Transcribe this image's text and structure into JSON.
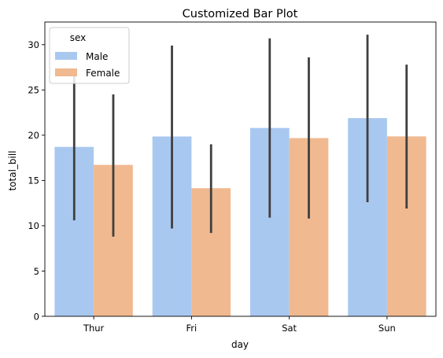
{
  "chart_data": {
    "type": "bar",
    "title": "Customized Bar Plot",
    "xlabel": "day",
    "ylabel": "total_bill",
    "categories": [
      "Thur",
      "Fri",
      "Sat",
      "Sun"
    ],
    "ylim": [
      0,
      32.5
    ],
    "yticks": [
      0,
      5,
      10,
      15,
      20,
      25,
      30
    ],
    "grid": false,
    "legend": {
      "title": "sex",
      "placement": "upper-left"
    },
    "series": [
      {
        "name": "Male",
        "color": "#a9c8f0",
        "values": [
          18.71,
          19.86,
          20.8,
          21.89
        ],
        "error_low": [
          10.6,
          9.7,
          10.9,
          12.6
        ],
        "error_high": [
          27.0,
          29.9,
          30.7,
          31.1
        ]
      },
      {
        "name": "Female",
        "color": "#f0b990",
        "values": [
          16.72,
          14.15,
          19.68,
          19.87
        ],
        "error_low": [
          8.8,
          9.2,
          10.8,
          11.9
        ],
        "error_high": [
          24.5,
          19.0,
          28.6,
          27.8
        ]
      }
    ]
  }
}
